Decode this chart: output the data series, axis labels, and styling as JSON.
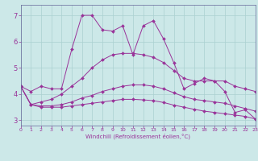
{
  "xlabel": "Windchill (Refroidissement éolien,°C)",
  "background_color": "#cce8e8",
  "grid_color": "#aad0d0",
  "line_color": "#993399",
  "x_ticks": [
    0,
    1,
    2,
    3,
    4,
    5,
    6,
    7,
    8,
    9,
    10,
    11,
    12,
    13,
    14,
    15,
    16,
    17,
    18,
    19,
    20,
    21,
    22,
    23
  ],
  "ylim": [
    2.8,
    7.4
  ],
  "xlim": [
    0,
    23
  ],
  "yticks": [
    3,
    4,
    5,
    6,
    7
  ],
  "series": [
    {
      "x": [
        0,
        1,
        2,
        3,
        4,
        5,
        6,
        7,
        8,
        9,
        10,
        11,
        12,
        13,
        14,
        15,
        16,
        17,
        18,
        19,
        20,
        21,
        22,
        23
      ],
      "y": [
        4.3,
        4.1,
        4.3,
        4.2,
        4.2,
        5.7,
        7.0,
        7.0,
        6.45,
        6.4,
        6.6,
        5.5,
        6.6,
        6.8,
        6.1,
        5.2,
        4.2,
        4.4,
        4.6,
        4.5,
        4.1,
        3.3,
        3.4,
        3.05
      ]
    },
    {
      "x": [
        0,
        1,
        2,
        3,
        4,
        5,
        6,
        7,
        8,
        9,
        10,
        11,
        12,
        13,
        14,
        15,
        16,
        17,
        18,
        19,
        20,
        21,
        22,
        23
      ],
      "y": [
        4.3,
        3.6,
        3.7,
        3.8,
        4.0,
        4.3,
        4.6,
        5.0,
        5.3,
        5.5,
        5.55,
        5.55,
        5.5,
        5.4,
        5.2,
        4.9,
        4.6,
        4.5,
        4.5,
        4.5,
        4.5,
        4.3,
        4.2,
        4.1
      ]
    },
    {
      "x": [
        0,
        1,
        2,
        3,
        4,
        5,
        6,
        7,
        8,
        9,
        10,
        11,
        12,
        13,
        14,
        15,
        16,
        17,
        18,
        19,
        20,
        21,
        22,
        23
      ],
      "y": [
        4.3,
        3.6,
        3.55,
        3.55,
        3.6,
        3.7,
        3.85,
        3.95,
        4.1,
        4.2,
        4.3,
        4.35,
        4.35,
        4.3,
        4.2,
        4.05,
        3.9,
        3.8,
        3.75,
        3.7,
        3.65,
        3.55,
        3.45,
        3.35
      ]
    },
    {
      "x": [
        0,
        1,
        2,
        3,
        4,
        5,
        6,
        7,
        8,
        9,
        10,
        11,
        12,
        13,
        14,
        15,
        16,
        17,
        18,
        19,
        20,
        21,
        22,
        23
      ],
      "y": [
        4.3,
        3.6,
        3.5,
        3.5,
        3.5,
        3.55,
        3.6,
        3.65,
        3.7,
        3.75,
        3.8,
        3.8,
        3.78,
        3.75,
        3.68,
        3.58,
        3.5,
        3.42,
        3.35,
        3.3,
        3.25,
        3.2,
        3.15,
        3.05
      ]
    }
  ]
}
